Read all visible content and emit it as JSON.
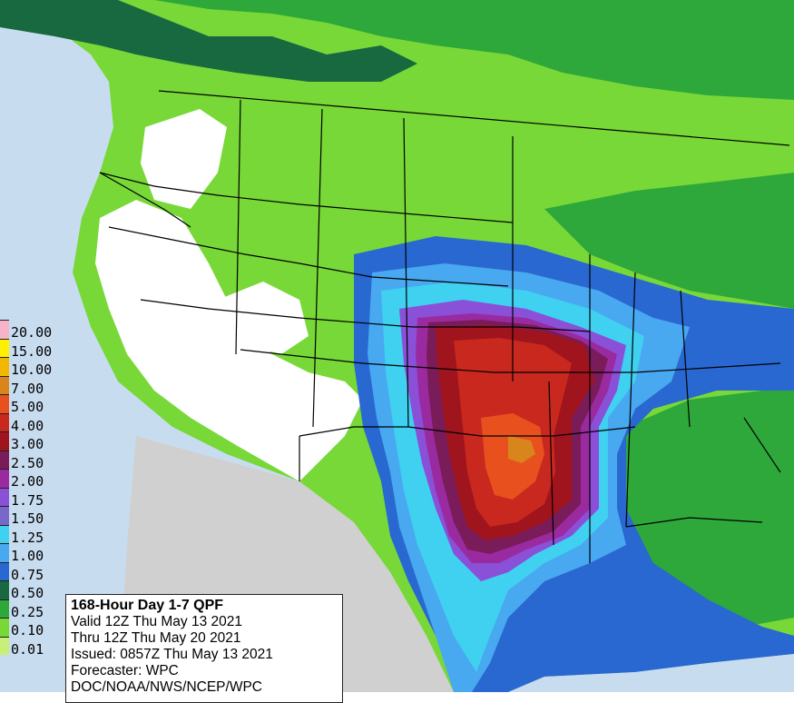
{
  "legend": {
    "entries": [
      {
        "label": "20.00",
        "color": "#f7b4c8"
      },
      {
        "label": "15.00",
        "color": "#fff000"
      },
      {
        "label": "10.00",
        "color": "#f2b800"
      },
      {
        "label": "7.00",
        "color": "#d7851c"
      },
      {
        "label": "5.00",
        "color": "#e8501e"
      },
      {
        "label": "4.00",
        "color": "#c8281e"
      },
      {
        "label": "3.00",
        "color": "#a0141e"
      },
      {
        "label": "2.50",
        "color": "#7a1c5a"
      },
      {
        "label": "2.00",
        "color": "#9a2aa0"
      },
      {
        "label": "1.75",
        "color": "#8a50d8"
      },
      {
        "label": "1.50",
        "color": "#7a68c8"
      },
      {
        "label": "1.25",
        "color": "#40d0f0"
      },
      {
        "label": "1.00",
        "color": "#48a8f0"
      },
      {
        "label": "0.75",
        "color": "#2868d0"
      },
      {
        "label": "0.50",
        "color": "#186840"
      },
      {
        "label": "0.25",
        "color": "#2ea83a"
      },
      {
        "label": "0.10",
        "color": "#78d838"
      },
      {
        "label": "0.01",
        "color": "#c8f078"
      }
    ]
  },
  "info": {
    "title": "168-Hour Day 1-7 QPF",
    "valid": "Valid 12Z Thu May 13 2021",
    "thru": "Thru 12Z Thu May 20 2021",
    "issued": "Issued: 0857Z Thu May 13 2021",
    "forecaster": "Forecaster: WPC",
    "agency": "DOC/NOAA/NWS/NCEP/WPC"
  },
  "colors": {
    "ocean": "#c8dcf0",
    "mexico": "#d0d0d0",
    "no_precip": "#ffffff",
    "border": "#000000"
  }
}
